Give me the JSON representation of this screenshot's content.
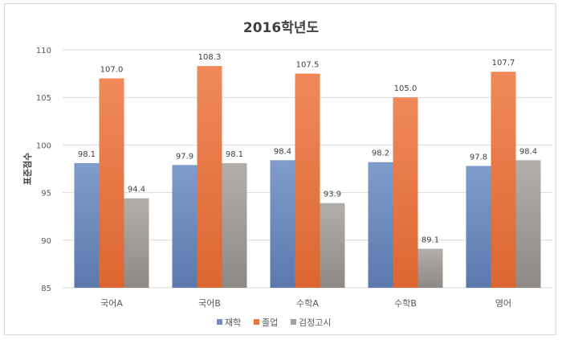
{
  "chart_data": {
    "type": "bar",
    "title": "2016학년도",
    "xlabel": "",
    "ylabel": "표준점수",
    "ylim": [
      85,
      110
    ],
    "yticks": [
      85,
      90,
      95,
      100,
      105,
      110
    ],
    "grid": true,
    "legend_position": "bottom",
    "categories": [
      "국어A",
      "국어B",
      "수학A",
      "수학B",
      "영어"
    ],
    "series": [
      {
        "name": "재학",
        "color": "#6f8fbf",
        "values": [
          98.1,
          97.9,
          98.4,
          98.2,
          97.8
        ]
      },
      {
        "name": "졸업",
        "color": "#e8773f",
        "values": [
          107.0,
          108.3,
          107.5,
          105.0,
          107.7
        ]
      },
      {
        "name": "검정고시",
        "color": "#a5a09b",
        "values": [
          94.4,
          98.1,
          93.9,
          89.1,
          98.4
        ]
      }
    ]
  }
}
